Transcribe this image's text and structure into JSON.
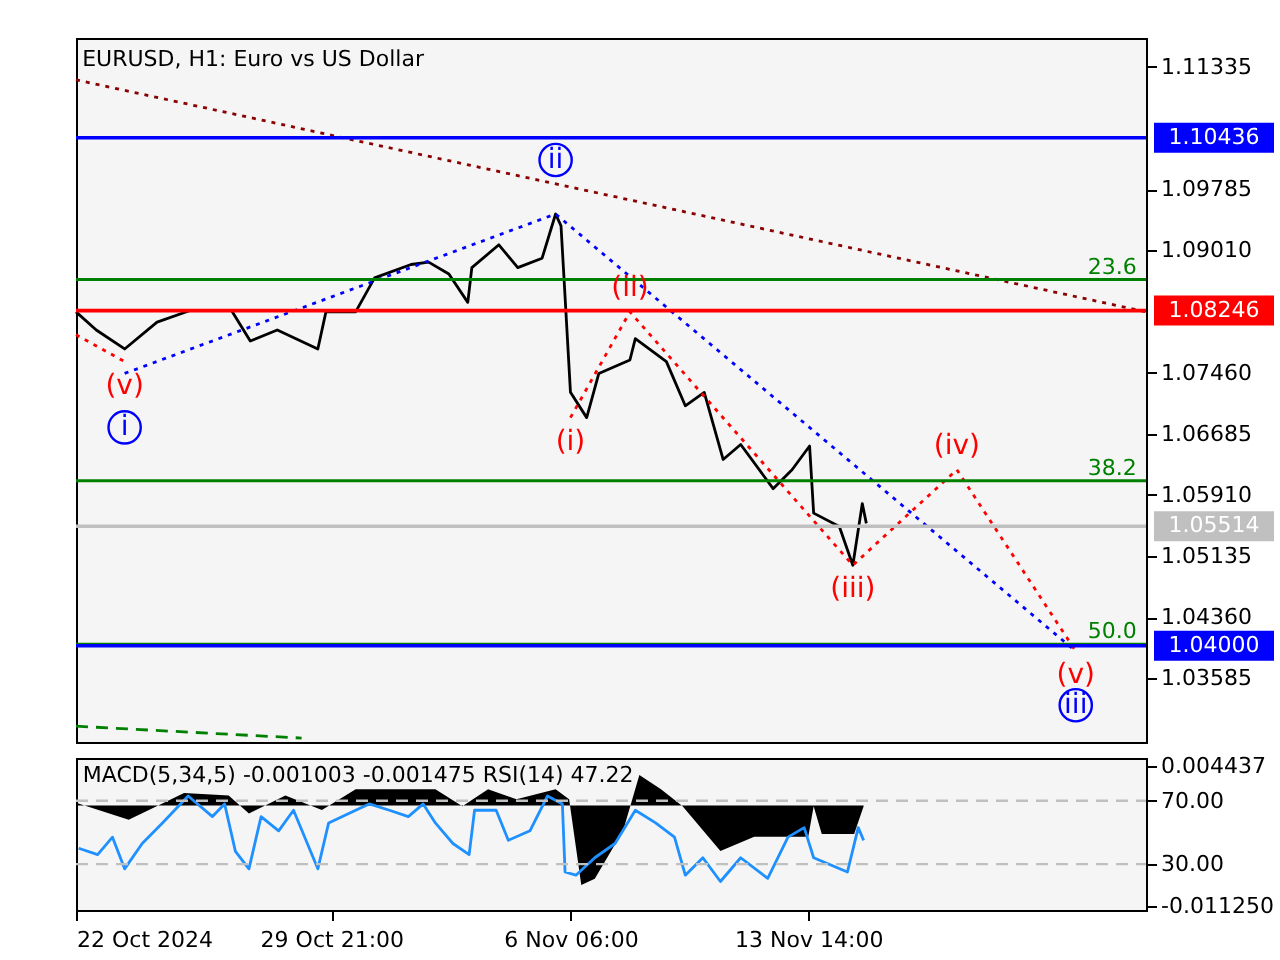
{
  "chart_data": [
    {
      "type": "line",
      "title": "EURUSD, H1:  Euro vs US Dollar",
      "tick_labels": "y",
      "xlim": [
        "2024-10-22T00:00",
        "2024-11-24T00:00"
      ],
      "xticks": [
        "2024-10-22T00:00",
        "2024-10-29T21:00",
        "2024-11-06T06:00",
        "2024-11-13T14:00"
      ],
      "ylim": [
        1.0278,
        1.117
      ],
      "yticks": [
        1.11335,
        1.09785,
        {
          "value": 1.0901,
          "label": "1.09010"
        },
        {
          "value": 1.0746,
          "label": "1.07460"
        },
        1.06685,
        {
          "value": 1.0591,
          "label": "1.05910"
        },
        1.05135,
        {
          "value": 1.0436,
          "label": "1.04360"
        },
        1.03585
      ],
      "series": [
        {
          "color": "#000000",
          "line_style": "solid",
          "x": [
            "2024-10-22T00:00",
            "2024-10-22T15:00",
            "2024-10-23T12:00",
            "2024-10-24T12:00",
            "2024-10-25T13:00",
            "2024-10-26T19:00",
            "2024-10-27T09:00",
            "2024-10-28T05:00",
            "2024-10-29T11:00",
            "2024-10-29T17:00",
            "2024-10-30T15:00",
            "2024-10-31T05:00",
            "2024-11-01T08:00",
            "2024-11-01T21:00",
            "2024-11-02T12:00",
            "2024-11-03T02:00",
            "2024-11-03T05:00",
            "2024-11-04T01:00",
            "2024-11-04T15:00",
            "2024-11-05T09:00",
            "2024-11-05T19:00",
            "2024-11-05T23:00",
            "2024-11-06T02:00",
            "2024-11-06T06:00",
            "2024-11-06T18:00",
            "2024-11-07T03:00",
            "2024-11-08T02:00",
            "2024-11-08T06:00",
            "2024-11-09T05:00",
            "2024-11-09T19:00",
            "2024-11-10T09:00",
            "2024-11-10T23:00",
            "2024-11-11T12:00",
            "2024-11-12T12:00",
            "2024-11-13T02:00",
            "2024-11-13T15:00",
            "2024-11-13T18:00",
            "2024-11-14T13:00",
            "2024-11-14T23:00",
            "2024-11-15T06:00",
            "2024-11-15T09:00"
          ],
          "values": [
            1.0823,
            1.08,
            1.0776,
            1.081,
            1.0825,
            1.0825,
            1.0786,
            1.08,
            1.0776,
            1.0823,
            1.0823,
            1.0866,
            1.0883,
            1.0886,
            1.0871,
            1.0835,
            1.0879,
            1.0908,
            1.0879,
            1.0891,
            1.0947,
            1.0932,
            1.0842,
            1.0721,
            1.0689,
            1.0745,
            1.0762,
            1.0789,
            1.076,
            1.0704,
            1.0721,
            1.0636,
            1.0655,
            1.0599,
            1.0623,
            1.0653,
            1.0568,
            1.0551,
            1.0502,
            1.058,
            1.0555
          ]
        },
        {
          "color": "#ff0000",
          "line_style": "dotted",
          "x": [
            "2024-10-22T00:00",
            "2024-10-23T12:00"
          ],
          "values": [
            1.0794,
            1.076
          ],
          "value_labels": [
            null,
            "(v)"
          ]
        },
        {
          "color": "#0000ff",
          "line_style": "dotted",
          "x": [
            "2024-10-23T12:00",
            "2024-11-05T19:00",
            "2024-11-21T20:00"
          ],
          "values": [
            1.0745,
            1.0947,
            1.0393
          ],
          "value_labels": [
            "i",
            "ii",
            "iii"
          ]
        },
        {
          "color": "#ff0000",
          "line_style": "dotted",
          "x": [
            "2024-11-06T06:00",
            "2024-11-08T02:00",
            "2024-11-14T23:00",
            "2024-11-18T04:00",
            "2024-11-21T20:00"
          ],
          "values": [
            1.0689,
            1.0823,
            1.0502,
            1.0623,
            1.0393
          ],
          "value_labels": [
            "(i)",
            "(ii)",
            "(iii)",
            "(iv)",
            "(v)"
          ]
        },
        {
          "color": "#8b0000",
          "line_style": "dotted",
          "x": [
            "2024-10-22T00:00",
            "2024-11-24T00:00"
          ],
          "values": [
            1.1117,
            1.0823
          ]
        },
        {
          "color": "#008000",
          "line_style": "dashed",
          "x": [
            "2024-10-22T00:00",
            "2024-10-28T23:00"
          ],
          "values": [
            1.0298,
            1.0283
          ]
        },
        {
          "color": "#008000",
          "line_style": "solid",
          "x": [
            "2024-10-22T00:00",
            "2024-11-24T00:00"
          ],
          "values": [
            1.0864,
            1.0864
          ]
        },
        {
          "color": "#008000",
          "line_style": "solid",
          "x": [
            "2024-10-22T00:00",
            "2024-11-24T00:00"
          ],
          "values": [
            1.0609,
            1.0609
          ]
        },
        {
          "color": "#008000",
          "line_style": "solid",
          "x": [
            "2024-10-22T00:00",
            "2024-11-24T00:00"
          ],
          "values": [
            1.0402,
            1.0402
          ]
        }
      ],
      "ref_lines": [
        {
          "axis": "y",
          "value": 1.10436,
          "label": "1.10436",
          "color": "#0000ff"
        },
        {
          "axis": "y",
          "value": 1.08246,
          "label": "1.08246",
          "color": "#ff0000"
        },
        {
          "axis": "y",
          "value": 1.05514,
          "label": "1.05514",
          "color": "#c0c0c0"
        },
        {
          "axis": "y",
          "value": 1.04,
          "label": "1.04000",
          "color": "#0000ff"
        }
      ],
      "annotations": [
        {
          "text": "23.6",
          "x": "2024-11-22T23:00",
          "y": 1.0864
        },
        {
          "text": "38.2",
          "x": "2024-11-22T23:00",
          "y": 1.0609
        },
        {
          "text": "50.0",
          "x": "2024-11-22T23:00",
          "y": 1.0402
        }
      ]
    },
    {
      "type": "line",
      "title": "MACD(5,34,5) -0.001003 -0.001475 RSI(14) 47.22",
      "xlim": [
        "2024-10-22T00:00",
        "2024-11-24T00:00"
      ],
      "xticks": [
        {
          "value": "2024-10-22T00:00",
          "label": "22 Oct 2024"
        },
        {
          "value": "2024-10-29T21:00",
          "label": "29 Oct 21:00"
        },
        {
          "value": "2024-11-06T06:00",
          "label": "6 Nov 06:00"
        },
        {
          "value": "2024-11-13T14:00",
          "label": "13 Nov 14:00"
        }
      ],
      "ylim": [
        1,
        97
      ],
      "yticks": [
        {
          "value": 70,
          "label": "70.00"
        },
        {
          "value": 30,
          "label": "30.00"
        }
      ],
      "y2lim": [
        -0.01168,
        0.0053
      ],
      "y2ticks": [
        0.004437,
        {
          "value": -0.01125,
          "label": "-0.011250"
        }
      ],
      "series": [
        {
          "type": "area",
          "axis": "y2",
          "color": "#000000",
          "x": [
            "2024-10-22T00:00",
            "2024-10-23T15:00",
            "2024-10-25T08:00",
            "2024-10-26T17:00",
            "2024-10-27T08:00",
            "2024-10-28T11:00",
            "2024-10-29T14:00",
            "2024-10-30T15:00",
            "2024-11-02T02:00",
            "2024-11-02T22:00",
            "2024-11-03T17:00",
            "2024-11-04T14:00",
            "2024-11-05T19:00",
            "2024-11-06T05:00",
            "2024-11-06T14:00",
            "2024-11-07T00:00",
            "2024-11-07T21:00",
            "2024-11-08T09:00",
            "2024-11-09T01:00",
            "2024-11-09T17:00",
            "2024-11-10T21:00",
            "2024-11-11T22:00",
            "2024-11-13T14:00",
            "2024-11-13T18:00",
            "2024-11-14T00:00",
            "2024-11-15T00:00",
            "2024-11-15T07:00"
          ],
          "values": [
            0.0003,
            -0.0016,
            0.0014,
            0.0011,
            -0.0009,
            0.0011,
            -0.0005,
            0.0018,
            0.0018,
            -0.0001,
            0.0018,
            0.0007,
            0.0018,
            0.0007,
            -0.0089,
            -0.0082,
            -0.0028,
            0.0034,
            0.0018,
            -0.0001,
            -0.0051,
            -0.0035,
            -0.0035,
            -0.0001,
            -0.0032,
            -0.0032,
            -0.0001
          ]
        },
        {
          "type": "line",
          "axis": "y",
          "color": "#1e90ff",
          "line_style": "solid",
          "x": [
            "2024-10-22T02:00",
            "2024-10-22T16:00",
            "2024-10-23T03:00",
            "2024-10-23T12:00",
            "2024-10-24T01:00",
            "2024-10-24T16:00",
            "2024-10-25T11:00",
            "2024-10-26T05:00",
            "2024-10-26T14:00",
            "2024-10-26T22:00",
            "2024-10-27T08:00",
            "2024-10-27T17:00",
            "2024-10-28T06:00",
            "2024-10-28T17:00",
            "2024-10-29T11:00",
            "2024-10-29T19:00",
            "2024-10-30T15:00",
            "2024-10-31T01:00",
            "2024-10-31T16:00",
            "2024-11-01T06:00",
            "2024-11-01T17:00",
            "2024-11-02T02:00",
            "2024-11-02T15:00",
            "2024-11-03T03:00",
            "2024-11-03T07:00",
            "2024-11-03T23:00",
            "2024-11-04T08:00",
            "2024-11-05T00:00",
            "2024-11-05T13:00",
            "2024-11-06T00:00",
            "2024-11-06T02:00",
            "2024-11-06T10:00",
            "2024-11-07T00:00",
            "2024-11-07T15:00",
            "2024-11-08T06:00",
            "2024-11-08T21:00",
            "2024-11-09T11:00",
            "2024-11-09T19:00",
            "2024-11-10T08:00",
            "2024-11-10T21:00",
            "2024-11-11T12:00",
            "2024-11-12T08:00",
            "2024-11-12T23:00",
            "2024-11-13T11:00",
            "2024-11-13T18:00",
            "2024-11-14T19:00",
            "2024-11-15T03:00",
            "2024-11-15T07:00"
          ],
          "values": [
            40,
            36,
            47,
            27,
            43,
            56,
            73,
            60,
            68,
            38,
            27,
            60,
            51,
            64,
            27,
            56,
            64,
            68,
            64,
            60,
            68,
            56,
            43,
            36,
            64,
            64,
            45,
            51,
            73,
            68,
            25,
            23,
            34,
            43,
            64,
            56,
            47,
            23,
            34,
            19,
            34,
            21,
            47,
            53,
            34,
            25,
            53,
            45
          ]
        }
      ],
      "ref_lines": [
        {
          "axis": "y",
          "value": 70,
          "color": "#c0c0c0",
          "line_style": "dashed"
        },
        {
          "axis": "y",
          "value": 30,
          "color": "#c0c0c0",
          "line_style": "dashed"
        }
      ]
    }
  ]
}
